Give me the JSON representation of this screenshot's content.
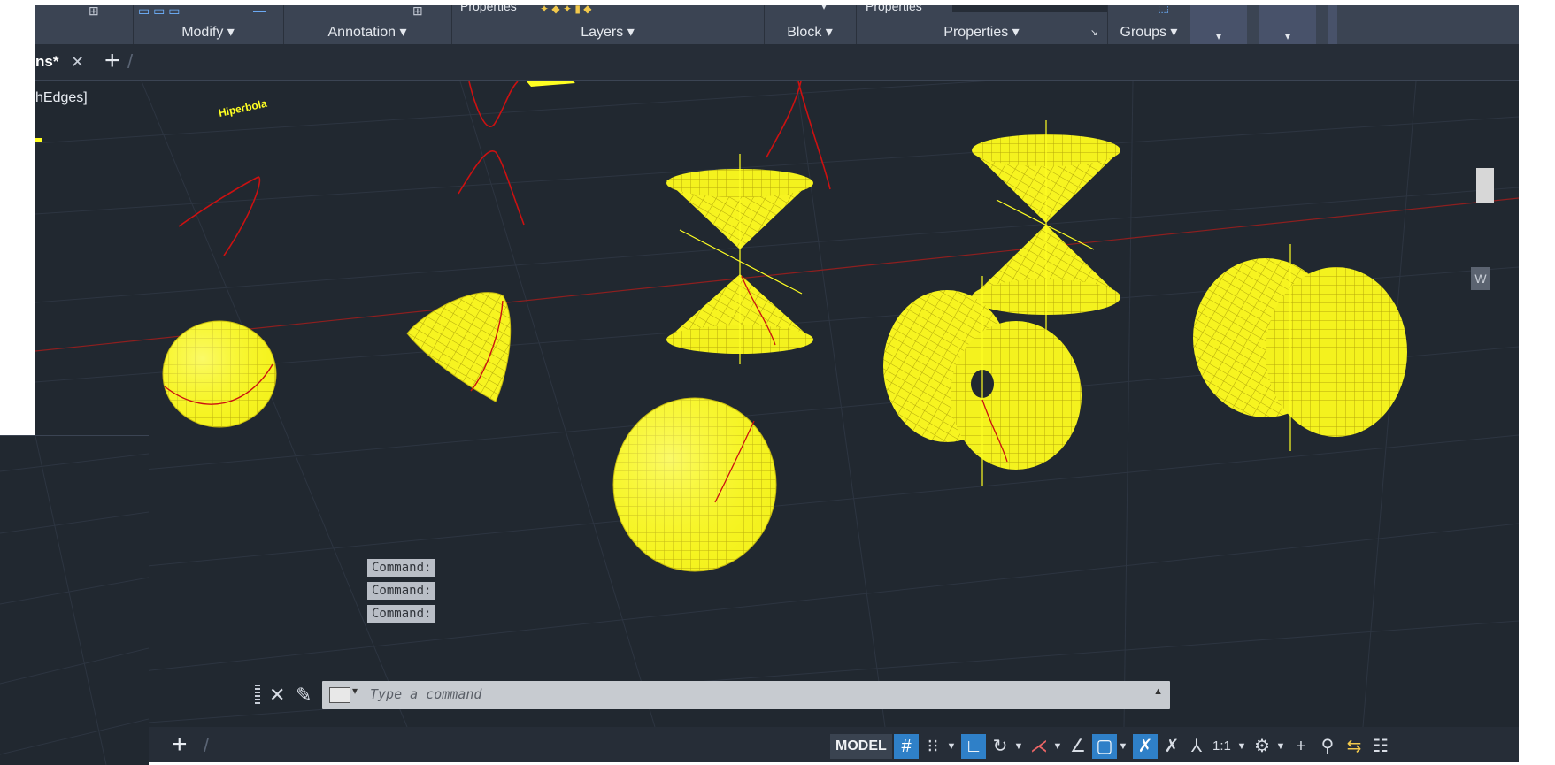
{
  "ribbon": {
    "panels": [
      "Modify",
      "Annotation",
      "Layers",
      "Block",
      "Properties",
      "Groups"
    ],
    "top_clipped_labels": [
      "Properties",
      "Properties"
    ]
  },
  "tabs": {
    "active_label": "ns*"
  },
  "viewport": {
    "visual_style_label": "hEdges]"
  },
  "drawing": {
    "label_hiperbola": "Hiperbola",
    "curve_color": "#cc1111",
    "surface_color": "#ffff22"
  },
  "command": {
    "history": [
      "Command:",
      "Command:",
      "Command:"
    ],
    "placeholder": "Type a command"
  },
  "status": {
    "model": "MODEL",
    "scale": "1:1"
  },
  "colors": {
    "background": "#212830",
    "ribbon": "#3b4453",
    "active_toggle": "#2f80c8"
  }
}
